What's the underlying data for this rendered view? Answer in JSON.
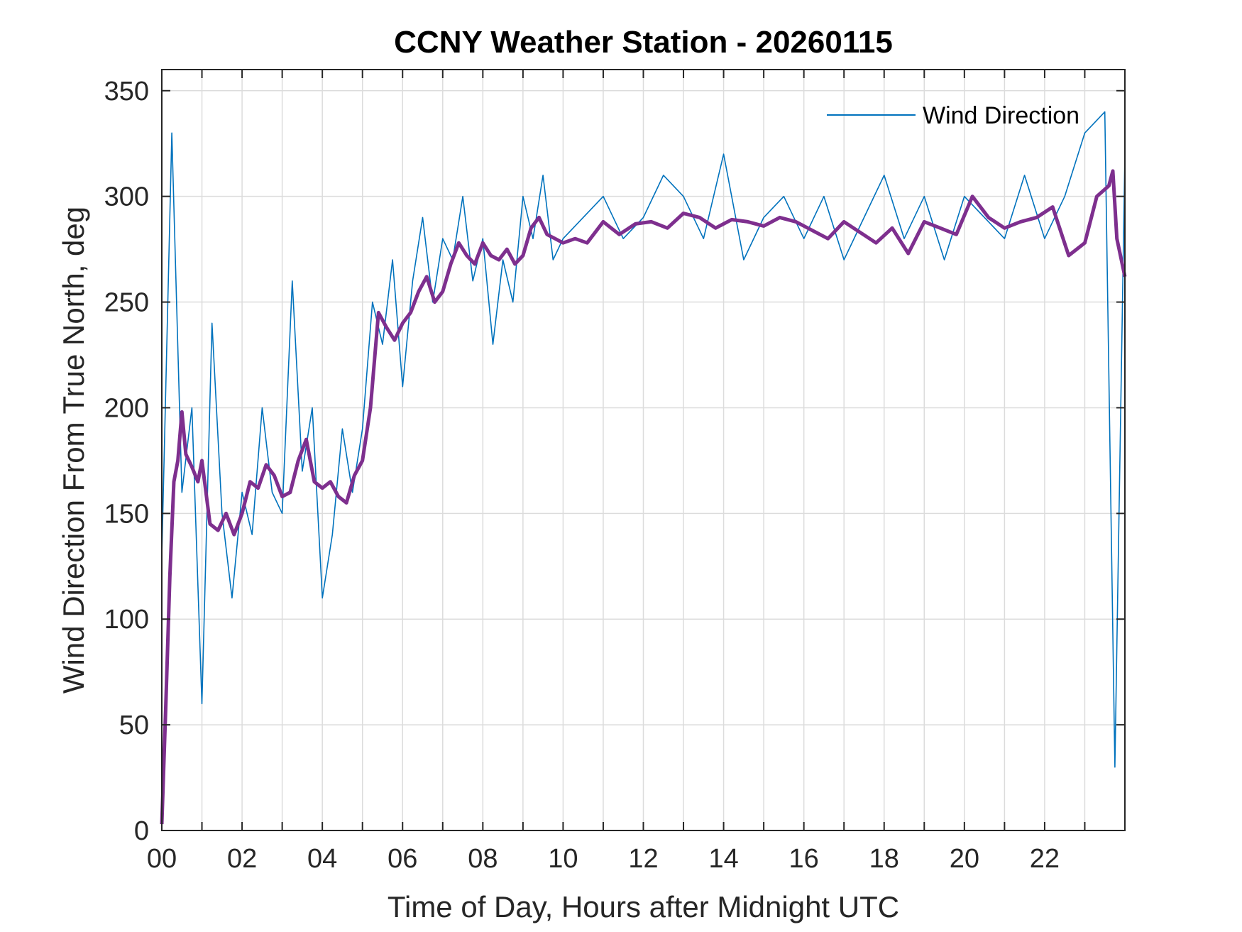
{
  "chart_data": {
    "type": "line",
    "title": "CCNY Weather Station - 20260115",
    "xlabel": "Time of Day, Hours after Midnight UTC",
    "ylabel": "Wind Direction From True North, deg",
    "xlim": [
      0,
      24
    ],
    "ylim": [
      0,
      360
    ],
    "x_ticks": [
      0,
      2,
      4,
      6,
      8,
      10,
      12,
      14,
      16,
      18,
      20,
      22
    ],
    "x_tick_labels": [
      "00",
      "02",
      "04",
      "06",
      "08",
      "10",
      "12",
      "14",
      "16",
      "18",
      "20",
      "22"
    ],
    "y_ticks": [
      0,
      50,
      100,
      150,
      200,
      250,
      300,
      350
    ],
    "y_tick_labels": [
      "0",
      "50",
      "100",
      "150",
      "200",
      "250",
      "300",
      "350"
    ],
    "grid": true,
    "legend_position": "top-right",
    "series": [
      {
        "name": "Wind Direction",
        "color": "#0072BD",
        "x": [
          0,
          0.25,
          0.5,
          0.75,
          1,
          1.25,
          1.5,
          1.75,
          2,
          2.25,
          2.5,
          2.75,
          3,
          3.25,
          3.5,
          3.75,
          4,
          4.25,
          4.5,
          4.75,
          5,
          5.25,
          5.5,
          5.75,
          6,
          6.25,
          6.5,
          6.75,
          7,
          7.25,
          7.5,
          7.75,
          8,
          8.25,
          8.5,
          8.75,
          9,
          9.25,
          9.5,
          9.75,
          10,
          10.5,
          11,
          11.5,
          12,
          12.5,
          13,
          13.5,
          14,
          14.5,
          15,
          15.5,
          16,
          16.5,
          17,
          17.5,
          18,
          18.5,
          19,
          19.5,
          20,
          20.5,
          21,
          21.5,
          22,
          22.5,
          23,
          23.5,
          23.75,
          24
        ],
        "y": [
          130,
          330,
          160,
          200,
          60,
          240,
          150,
          110,
          160,
          140,
          200,
          160,
          150,
          260,
          170,
          200,
          110,
          140,
          190,
          160,
          190,
          250,
          230,
          270,
          210,
          260,
          290,
          250,
          280,
          270,
          300,
          260,
          280,
          230,
          270,
          250,
          300,
          280,
          310,
          270,
          280,
          290,
          300,
          280,
          290,
          310,
          300,
          280,
          320,
          270,
          290,
          300,
          280,
          300,
          270,
          290,
          310,
          280,
          300,
          270,
          300,
          290,
          280,
          310,
          280,
          300,
          330,
          340,
          30,
          320
        ]
      },
      {
        "color": "#7E2F8E",
        "x": [
          0,
          0.1,
          0.2,
          0.3,
          0.4,
          0.5,
          0.6,
          0.75,
          0.9,
          1,
          1.2,
          1.4,
          1.6,
          1.8,
          2,
          2.2,
          2.4,
          2.6,
          2.8,
          3,
          3.2,
          3.4,
          3.6,
          3.8,
          4,
          4.2,
          4.4,
          4.6,
          4.8,
          5,
          5.2,
          5.4,
          5.6,
          5.8,
          6,
          6.2,
          6.4,
          6.6,
          6.8,
          7,
          7.2,
          7.4,
          7.6,
          7.8,
          8,
          8.2,
          8.4,
          8.6,
          8.8,
          9,
          9.2,
          9.4,
          9.6,
          9.8,
          10,
          10.3,
          10.6,
          11,
          11.4,
          11.8,
          12.2,
          12.6,
          13,
          13.4,
          13.8,
          14.2,
          14.6,
          15,
          15.4,
          15.8,
          16.2,
          16.6,
          17,
          17.4,
          17.8,
          18.2,
          18.6,
          19,
          19.4,
          19.8,
          20.2,
          20.6,
          21,
          21.4,
          21.8,
          22.2,
          22.6,
          23,
          23.3,
          23.6,
          23.7,
          23.8,
          24
        ],
        "y": [
          3,
          60,
          120,
          165,
          175,
          198,
          178,
          172,
          165,
          175,
          145,
          142,
          150,
          140,
          150,
          165,
          162,
          173,
          168,
          158,
          160,
          175,
          185,
          165,
          162,
          165,
          158,
          155,
          168,
          175,
          200,
          245,
          238,
          232,
          240,
          245,
          255,
          262,
          250,
          255,
          268,
          278,
          272,
          268,
          278,
          272,
          270,
          275,
          268,
          272,
          285,
          290,
          282,
          280,
          278,
          280,
          278,
          288,
          282,
          287,
          288,
          285,
          292,
          290,
          285,
          289,
          288,
          286,
          290,
          288,
          284,
          280,
          288,
          283,
          278,
          285,
          273,
          288,
          285,
          282,
          300,
          290,
          285,
          288,
          290,
          295,
          272,
          278,
          300,
          305,
          312,
          280,
          262
        ]
      }
    ]
  }
}
